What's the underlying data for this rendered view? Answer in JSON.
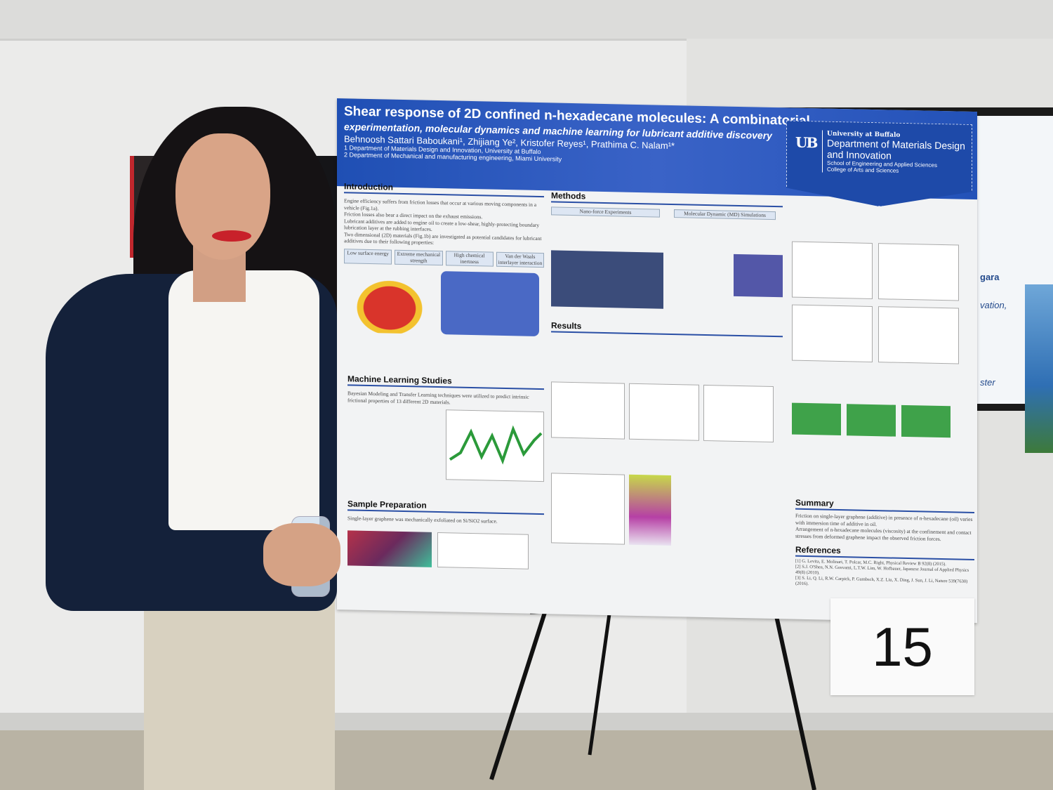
{
  "poster": {
    "title": "Shear response of 2D confined n-hexadecane molecules: A combinatorial",
    "subtitle": "experimentation, molecular dynamics and machine learning for lubricant additive discovery",
    "authors": "Behnoosh Sattari Baboukani¹, Zhijiang Ye², Kristofer Reyes¹, Prathima C. Nalam¹*",
    "affiliations": [
      "1 Department of Materials Design and Innovation, University at Buffalo",
      "2 Department of Mechanical and manufacturing engineering, Miami University"
    ],
    "logo": {
      "mark": "UB",
      "university": "University at Buffalo",
      "department": "Department of Materials Design and Innovation",
      "schools": [
        "School of Engineering and Applied Sciences",
        "College of Arts and Sciences"
      ]
    },
    "sections": {
      "introduction": {
        "heading": "Introduction",
        "bullets": [
          "Engine efficiency suffers from friction losses that occur at various moving components in a vehicle (Fig.1a).",
          "Friction losses also bear a direct impact on the exhaust emissions.",
          "Lubricant additives are added to engine oil to create a low-shear, highly-protecting boundary lubrication layer at the rubbing interfaces.",
          "Two dimensional (2D) materials (Fig.1b) are investigated as potential candidates for lubricant additives due to their following properties:"
        ],
        "properties": [
          "Low surface energy",
          "Extreme mechanical strength",
          "High chemical inertness",
          "Van der Waals interlayer interaction"
        ]
      },
      "methods": {
        "heading": "Methods",
        "sub1": "Nano-force Experiments",
        "sub2": "Molecular Dynamic (MD) Simulations"
      },
      "results": {
        "heading": "Results"
      },
      "ml": {
        "heading": "Machine Learning Studies",
        "lead": "Bayesian Modeling and Transfer Learning techniques were utilized to predict intrinsic frictional properties of 13 different 2D materials."
      },
      "sample": {
        "heading": "Sample Preparation",
        "lead": "Single-layer graphene was mechanically exfoliated on Si/SiO2 surface."
      },
      "summary": {
        "heading": "Summary",
        "bullets": [
          "Friction on single-layer graphene (additive) in presence of n-hexadecane (oil) varies with immersion time of additive in oil.",
          "Arrangement of n-hexadecane molecules (viscosity) at the confinement and contact stresses from deformed graphene impact the observed friction forces."
        ]
      },
      "references": {
        "heading": "References",
        "items": [
          "[1] G. Levita, E. Molinari, T. Polcar, M.C. Righi, Physical Review B 92(8) (2015).",
          "[2] S.J. O'Shea, N.N. Gosvami, L.T.W. Lim, W. Hofbauer, Japanese Journal of Applied Physics 49(8) (2010).",
          "[3] S. Li, Q. Li, R.W. Carpick, P. Gumbsch, X.Z. Liu, X. Ding, J. Sun, J. Li, Nature 539(7630) (2016)."
        ]
      }
    }
  },
  "poster_number": "15",
  "screen_fragments": [
    "gara",
    "vation,",
    "ster"
  ],
  "colors": {
    "poster_blue": "#2352b8",
    "jacket": "#14213a",
    "lips": "#c8212a"
  }
}
